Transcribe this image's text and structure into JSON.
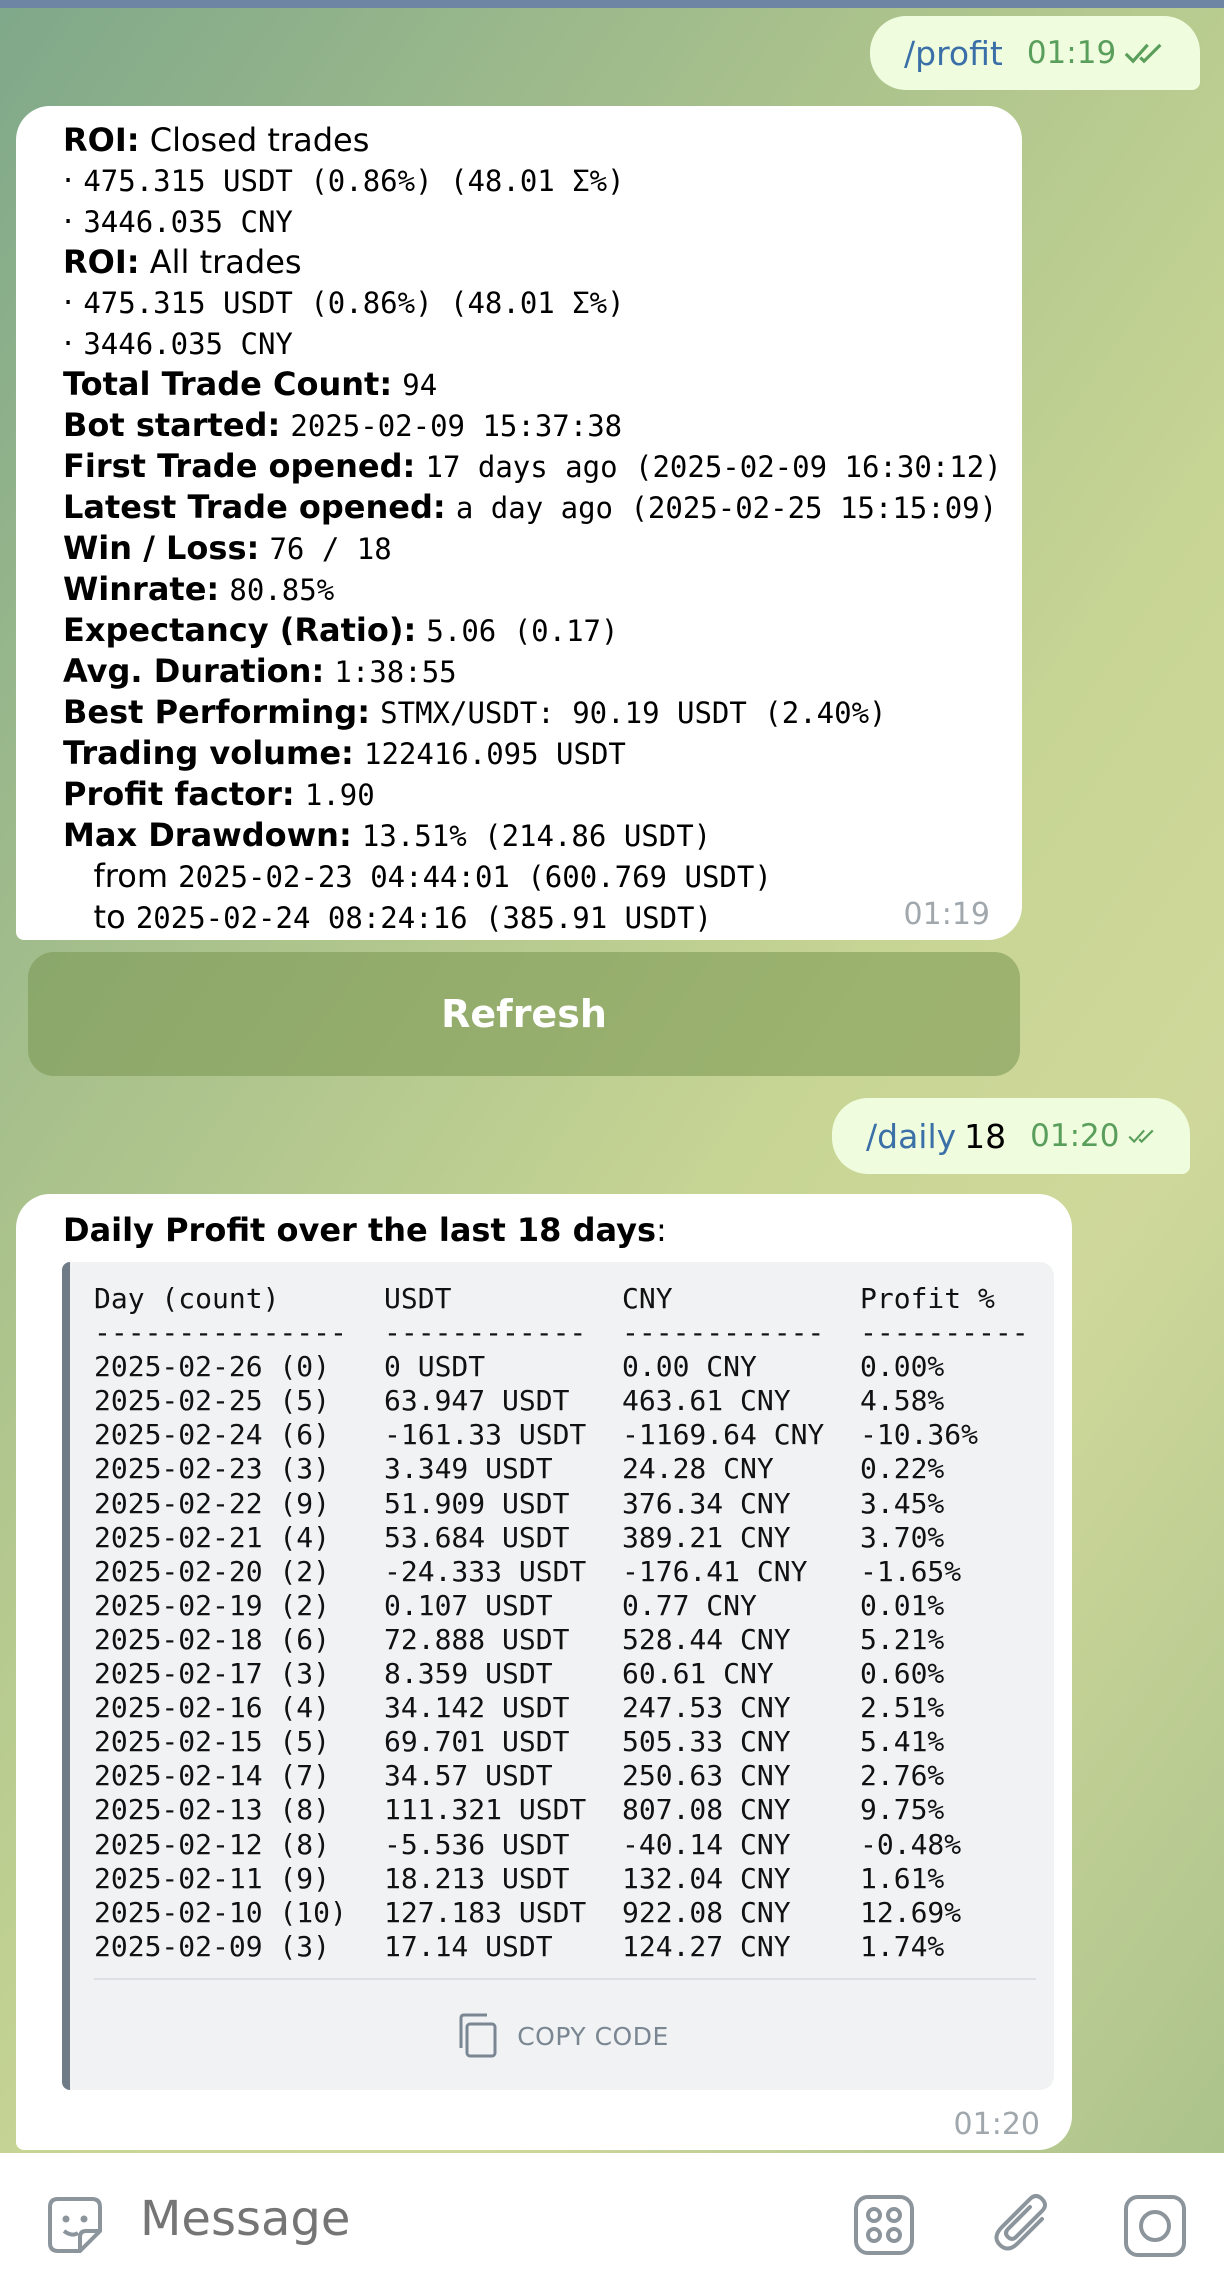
{
  "msg1": {
    "cmd": "/profit",
    "time": "01:19"
  },
  "profit": {
    "lines": [
      {
        "label": "ROI:",
        "text": " Closed trades",
        "value": ""
      },
      {
        "label": "",
        "text": "· ",
        "value": "475.315 USDT (0.86%) (48.01 Σ%)"
      },
      {
        "label": "",
        "text": "· ",
        "value": "3446.035 CNY"
      },
      {
        "label": "ROI:",
        "text": " All trades",
        "value": ""
      },
      {
        "label": "",
        "text": "· ",
        "value": "475.315 USDT (0.86%) (48.01 Σ%)"
      },
      {
        "label": "",
        "text": "· ",
        "value": "3446.035 CNY"
      },
      {
        "label": "Total Trade Count:",
        "text": " ",
        "value": "94"
      },
      {
        "label": "Bot started:",
        "text": " ",
        "value": "2025-02-09 15:37:38"
      },
      {
        "label": "First Trade opened:",
        "text": " ",
        "value": "17 days ago (2025-02-09 16:30:12)"
      },
      {
        "label": "Latest Trade opened:",
        "text": " ",
        "value": "a day ago (2025-02-25 15:15:09)"
      },
      {
        "label": "Win / Loss:",
        "text": " ",
        "value": "76 / 18"
      },
      {
        "label": "Winrate:",
        "text": " ",
        "value": "80.85%"
      },
      {
        "label": "Expectancy (Ratio):",
        "text": " ",
        "value": "5.06 (0.17)"
      },
      {
        "label": "Avg. Duration:",
        "text": " ",
        "value": "1:38:55"
      },
      {
        "label": "Best Performing:",
        "text": " ",
        "value": "STMX/USDT: 90.19 USDT (2.40%)"
      },
      {
        "label": "Trading volume:",
        "text": " ",
        "value": "122416.095 USDT"
      },
      {
        "label": "Profit factor:",
        "text": " ",
        "value": "1.90"
      },
      {
        "label": "Max Drawdown:",
        "text": " ",
        "value": "13.51% (214.86 USDT)"
      },
      {
        "label": "",
        "text": "   from ",
        "value": "2025-02-23 04:44:01 (600.769 USDT)"
      },
      {
        "label": "",
        "text": "   to ",
        "value": "2025-02-24 08:24:16 (385.91 USDT)"
      }
    ],
    "time": "01:19"
  },
  "refresh_label": "Refresh",
  "msg2": {
    "cmd": "/daily",
    "arg": "18",
    "time": "01:20"
  },
  "daily": {
    "title": "Daily Profit over the last 18 days",
    "title_suffix": ":",
    "headers": [
      "Day (count)",
      "USDT",
      "CNY",
      "Profit %"
    ],
    "separators": [
      "---------------",
      "------------",
      "------------",
      "----------"
    ],
    "rows": [
      [
        "2025-02-26 (0)",
        "0 USDT",
        "0.00 CNY",
        "0.00%"
      ],
      [
        "2025-02-25 (5)",
        "63.947 USDT",
        "463.61 CNY",
        "4.58%"
      ],
      [
        "2025-02-24 (6)",
        "-161.33 USDT",
        "-1169.64 CNY",
        "-10.36%"
      ],
      [
        "2025-02-23 (3)",
        "3.349 USDT",
        "24.28 CNY",
        "0.22%"
      ],
      [
        "2025-02-22 (9)",
        "51.909 USDT",
        "376.34 CNY",
        "3.45%"
      ],
      [
        "2025-02-21 (4)",
        "53.684 USDT",
        "389.21 CNY",
        "3.70%"
      ],
      [
        "2025-02-20 (2)",
        "-24.333 USDT",
        "-176.41 CNY",
        "-1.65%"
      ],
      [
        "2025-02-19 (2)",
        "0.107 USDT",
        "0.77 CNY",
        "0.01%"
      ],
      [
        "2025-02-18 (6)",
        "72.888 USDT",
        "528.44 CNY",
        "5.21%"
      ],
      [
        "2025-02-17 (3)",
        "8.359 USDT",
        "60.61 CNY",
        "0.60%"
      ],
      [
        "2025-02-16 (4)",
        "34.142 USDT",
        "247.53 CNY",
        "2.51%"
      ],
      [
        "2025-02-15 (5)",
        "69.701 USDT",
        "505.33 CNY",
        "5.41%"
      ],
      [
        "2025-02-14 (7)",
        "34.57 USDT",
        "250.63 CNY",
        "2.76%"
      ],
      [
        "2025-02-13 (8)",
        "111.321 USDT",
        "807.08 CNY",
        "9.75%"
      ],
      [
        "2025-02-12 (8)",
        "-5.536 USDT",
        "-40.14 CNY",
        "-0.48%"
      ],
      [
        "2025-02-11 (9)",
        "18.213 USDT",
        "132.04 CNY",
        "1.61%"
      ],
      [
        "2025-02-10 (10)",
        "127.183 USDT",
        "922.08 CNY",
        "12.69%"
      ],
      [
        "2025-02-09 (3)",
        "17.14 USDT",
        "124.27 CNY",
        "1.74%"
      ]
    ],
    "copy_label": "COPY CODE",
    "time": "01:20"
  },
  "composer": {
    "placeholder": "Message"
  },
  "icons": [
    "double-check-icon",
    "copy-icon",
    "sticker-icon",
    "bot-menu-icon",
    "attach-icon",
    "camera-icon"
  ]
}
